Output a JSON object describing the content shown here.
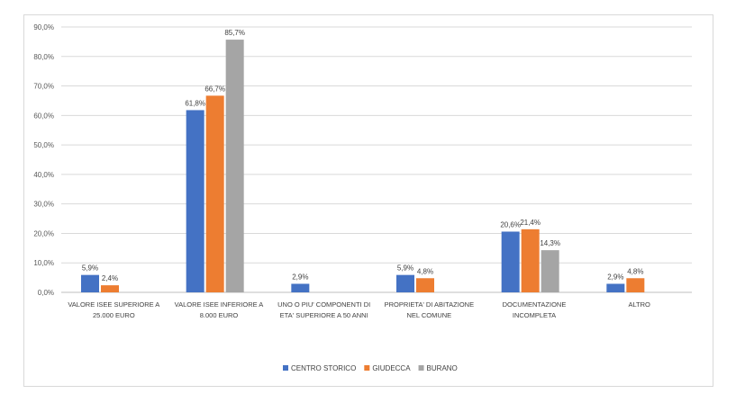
{
  "chart_data": {
    "type": "bar",
    "title": "",
    "xlabel": "",
    "ylabel": "",
    "ylim": [
      0,
      90
    ],
    "yticks": [
      0,
      10,
      20,
      30,
      40,
      50,
      60,
      70,
      80,
      90
    ],
    "ytick_labels": [
      "0,0%",
      "10,0%",
      "20,0%",
      "30,0%",
      "40,0%",
      "50,0%",
      "60,0%",
      "70,0%",
      "80,0%",
      "90,0%"
    ],
    "grid": true,
    "legend_position": "bottom",
    "categories": [
      [
        "VALORE ISEE SUPERIORE A",
        "25.000 EURO"
      ],
      [
        "VALORE ISEE INFERIORE A",
        "8.000 EURO"
      ],
      [
        "UNO O PIU' COMPONENTI DI",
        "ETA' SUPERIORE A 50 ANNI"
      ],
      [
        "PROPRIETA' DI ABITAZIONE",
        "NEL COMUNE"
      ],
      [
        "DOCUMENTAZIONE",
        "INCOMPLETA"
      ],
      [
        "ALTRO"
      ]
    ],
    "series": [
      {
        "name": "CENTRO STORICO",
        "color": "#4472c4",
        "values": [
          5.9,
          61.8,
          2.9,
          5.9,
          20.6,
          2.9
        ],
        "labels": [
          "5,9%",
          "61,8%",
          "2,9%",
          "5,9%",
          "20,6%",
          "2,9%"
        ]
      },
      {
        "name": "GIUDECCA",
        "color": "#ed7d31",
        "values": [
          2.4,
          66.7,
          null,
          4.8,
          21.4,
          4.8
        ],
        "labels": [
          "2,4%",
          "66,7%",
          null,
          "4,8%",
          "21,4%",
          "4,8%"
        ]
      },
      {
        "name": "BURANO",
        "color": "#a5a5a5",
        "values": [
          null,
          85.7,
          null,
          null,
          14.3,
          null
        ],
        "labels": [
          null,
          "85,7%",
          null,
          null,
          "14,3%",
          null
        ]
      }
    ]
  }
}
